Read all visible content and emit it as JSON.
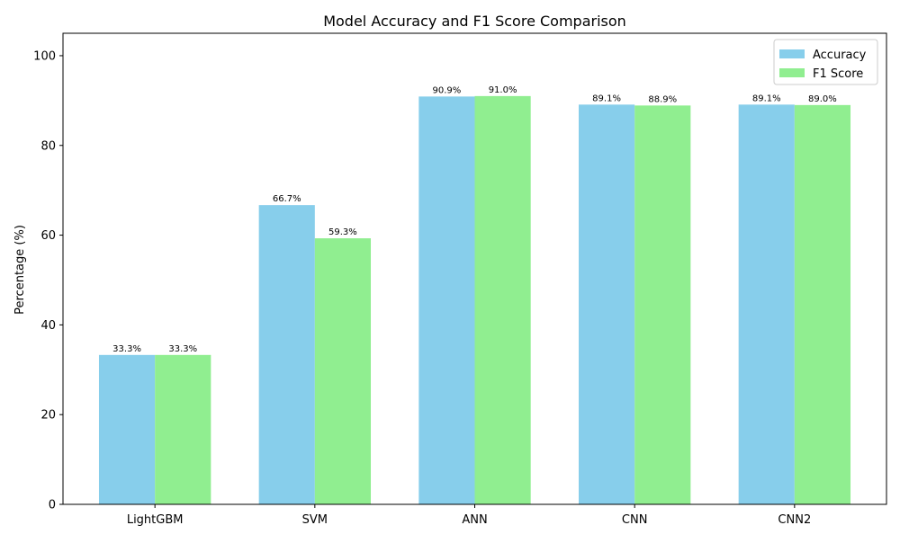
{
  "chart_data": {
    "type": "bar",
    "title": "Model Accuracy and F1 Score Comparison",
    "xlabel": "",
    "ylabel": "Percentage (%)",
    "categories": [
      "LightGBM",
      "SVM",
      "ANN",
      "CNN",
      "CNN2"
    ],
    "series": [
      {
        "name": "Accuracy",
        "color": "#87ceeb",
        "values": [
          33.3,
          66.7,
          90.9,
          89.1,
          89.1
        ],
        "labels": [
          "33.3%",
          "66.7%",
          "90.9%",
          "89.1%",
          "89.1%"
        ]
      },
      {
        "name": "F1 Score",
        "color": "#90ee90",
        "values": [
          33.3,
          59.3,
          91.0,
          88.9,
          89.0
        ],
        "labels": [
          "33.3%",
          "59.3%",
          "91.0%",
          "88.9%",
          "89.0%"
        ]
      }
    ],
    "ylim": [
      0,
      105
    ],
    "yticks": [
      0,
      20,
      40,
      60,
      80,
      100
    ],
    "grid": false,
    "legend_position": "top-right"
  }
}
